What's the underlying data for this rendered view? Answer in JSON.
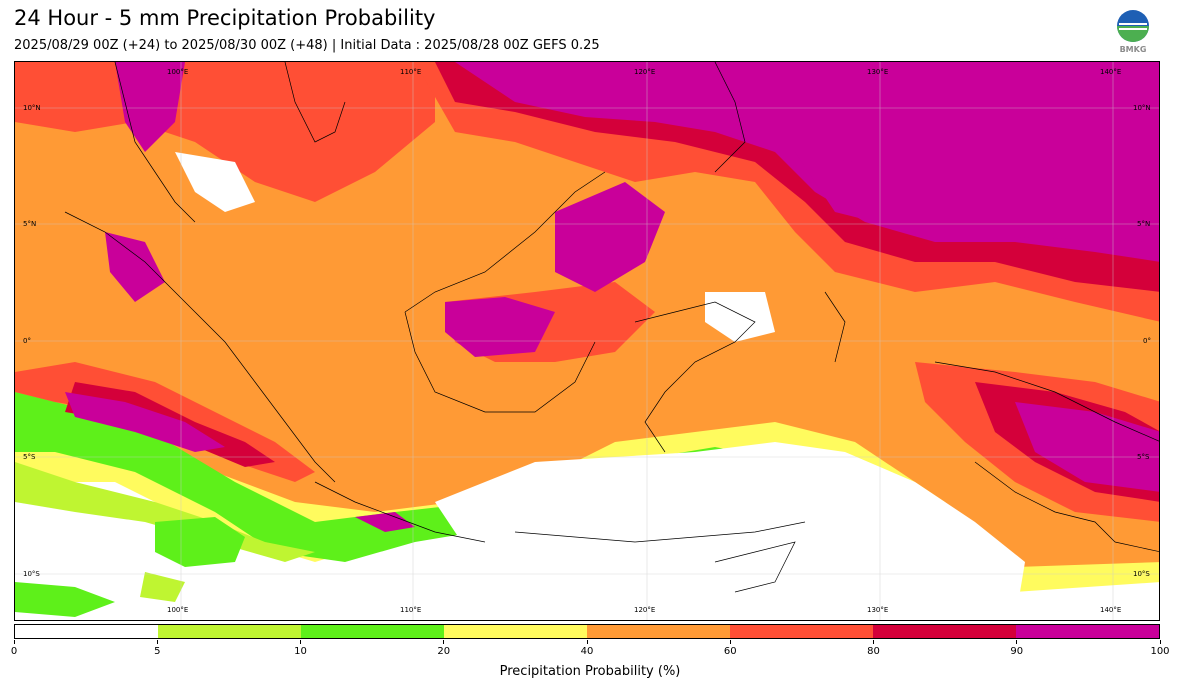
{
  "header": {
    "title": "24 Hour - 5 mm Precipitation Probability",
    "subtitle": "2025/08/29 00Z (+24) to 2025/08/30 00Z (+48) | Initial Data : 2025/08/28 00Z GEFS 0.25",
    "logo_text": "BMKG"
  },
  "map": {
    "lon_labels": [
      "100°E",
      "110°E",
      "120°E",
      "130°E",
      "140°E"
    ],
    "lat_labels": [
      "10°N",
      "5°N",
      "0°",
      "5°S",
      "10°S"
    ]
  },
  "colorbar": {
    "ticks": [
      "0",
      "5",
      "10",
      "20",
      "40",
      "60",
      "80",
      "90",
      "100"
    ],
    "colors": [
      "#ffffff",
      "#bff531",
      "#5ef01a",
      "#fffb5e",
      "#ff9a35",
      "#ff4f35",
      "#d4003a",
      "#c9009a"
    ],
    "label": "Precipitation Probability (%)"
  }
}
